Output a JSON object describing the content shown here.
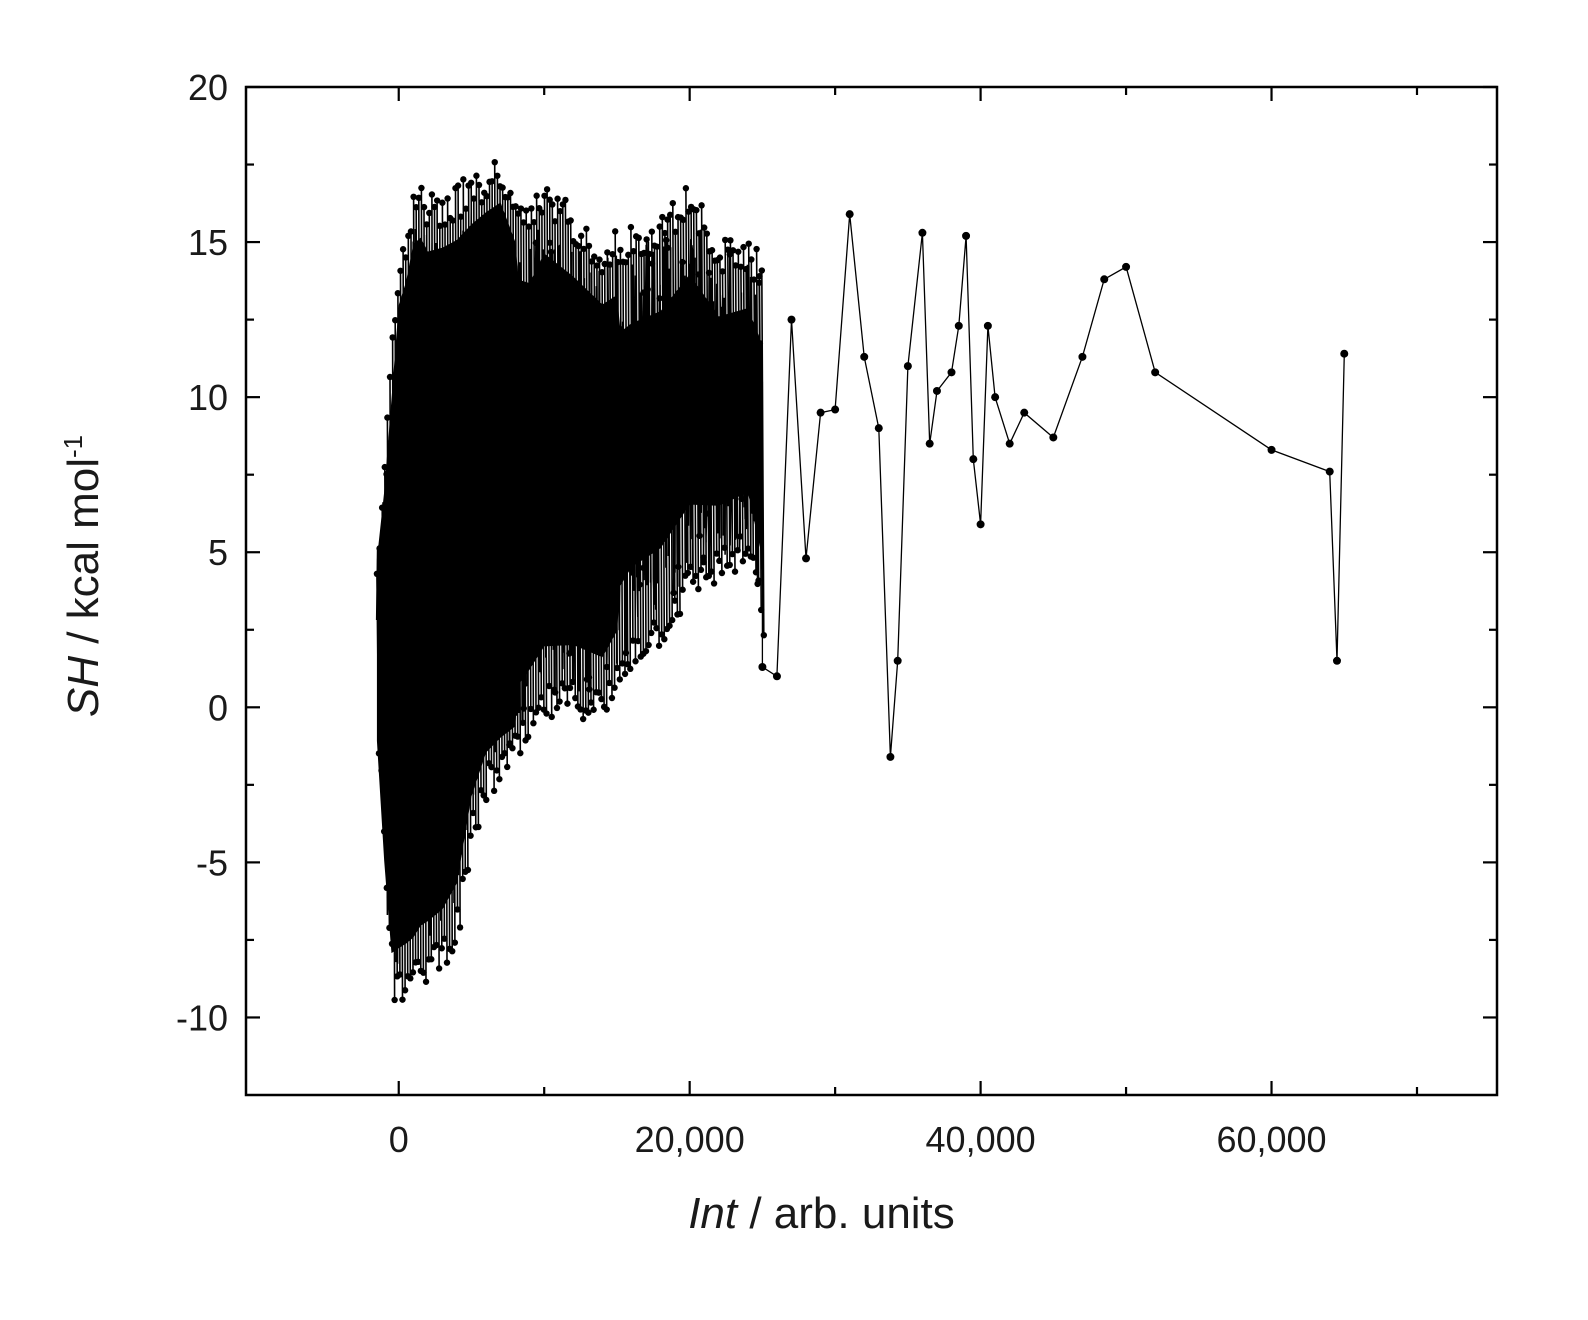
{
  "chart_data": {
    "type": "line",
    "xlabel": {
      "italic": "Int",
      "rest": " / arb. units"
    },
    "ylabel": {
      "italic": "SH",
      "rest": " / kcal mol",
      "sup": "-1"
    },
    "xlim": [
      -10500,
      75500
    ],
    "ylim": [
      -12.5,
      20
    ],
    "xticks": [
      0,
      20000,
      40000,
      60000
    ],
    "xtick_labels": [
      "0",
      "20,000",
      "40,000",
      "60,000"
    ],
    "xminor": [
      10000,
      30000,
      50000,
      70000
    ],
    "yticks": [
      -10,
      -5,
      0,
      5,
      10,
      15,
      20
    ],
    "ytick_labels": [
      "-10",
      "-5",
      "0",
      "5",
      "10",
      "15",
      "20"
    ],
    "yminor": [
      -7.5,
      -2.5,
      2.5,
      7.5,
      12.5,
      17.5
    ],
    "grid": false,
    "legend": "none",
    "line_color": "#000000",
    "series": [
      {
        "description_sparse_tail": "individually readable points beyond the dense cluster",
        "x": [
          25000,
          26000,
          27000,
          28000,
          29000,
          30000,
          31000,
          32000,
          33000,
          33800,
          34300,
          35000,
          36000,
          36500,
          37000,
          38000,
          38500,
          39000,
          39500,
          40000,
          40500,
          41000,
          42000,
          43000,
          45000,
          47000,
          48500,
          50000,
          52000,
          60000,
          64000,
          64500,
          65000
        ],
        "y": [
          1.3,
          1.0,
          12.5,
          4.8,
          9.5,
          9.6,
          15.9,
          11.3,
          9.0,
          -1.6,
          1.5,
          11.0,
          15.3,
          8.5,
          10.2,
          10.8,
          12.3,
          15.2,
          8.0,
          5.9,
          12.3,
          10.0,
          8.5,
          9.5,
          8.7,
          11.3,
          13.8,
          14.2,
          10.8,
          8.3,
          7.6,
          1.5,
          11.4
        ]
      }
    ],
    "dense_region": {
      "description": "thousands of overlapping points from about x=-1500 to x=25000; envelope of the point cloud at sample x positions",
      "x": [
        -1500,
        -1000,
        -500,
        0,
        500,
        1000,
        1500,
        2000,
        3000,
        4000,
        5000,
        6000,
        7000,
        8000,
        9000,
        10000,
        12000,
        14000,
        16000,
        18000,
        20000,
        22000,
        24000,
        25000
      ],
      "y_upper": [
        5.3,
        8.0,
        11.5,
        14.8,
        15.6,
        16.9,
        17.1,
        16.6,
        16.7,
        16.9,
        17.2,
        17.5,
        17.8,
        16.4,
        16.1,
        17.1,
        16.2,
        15.2,
        15.6,
        15.9,
        17.0,
        15.1,
        15.3,
        14.5
      ],
      "y_lower": [
        -1.6,
        -6.0,
        -9.5,
        -9.6,
        -9.5,
        -9.4,
        -9.0,
        -8.8,
        -8.4,
        -7.5,
        -4.5,
        -3.0,
        -2.5,
        -2.0,
        -1.2,
        -0.5,
        -0.3,
        -0.6,
        1.3,
        2.0,
        3.5,
        4.0,
        4.5,
        2.0
      ]
    }
  }
}
